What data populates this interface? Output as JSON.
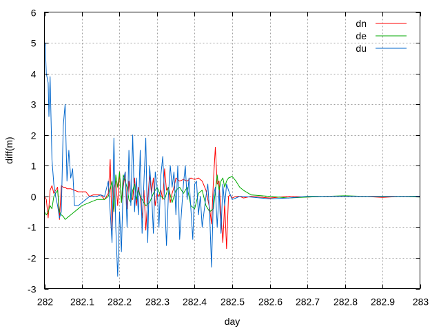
{
  "chart_data": {
    "type": "line",
    "title": "",
    "xlabel": "day",
    "ylabel": "diff(m)",
    "xlim": [
      282,
      283
    ],
    "ylim": [
      -3,
      6
    ],
    "x_ticks": [
      282,
      282.1,
      282.2,
      282.3,
      282.4,
      282.5,
      282.6,
      282.7,
      282.8,
      282.9,
      283
    ],
    "x_tick_labels": [
      "282",
      "282.1",
      "282.2",
      "282.3",
      "282.4",
      "282.5",
      "282.6",
      "282.7",
      "282.8",
      "282.9",
      "283"
    ],
    "y_ticks": [
      -3,
      -2,
      -1,
      0,
      1,
      2,
      3,
      4,
      5,
      6
    ],
    "y_tick_labels": [
      "-3",
      "-2",
      "-1",
      "0",
      "1",
      "2",
      "3",
      "4",
      "5",
      "6"
    ],
    "grid": true,
    "legend_position": "top-right",
    "series": [
      {
        "name": "dn",
        "color": "#ff0000",
        "x": [
          282.0,
          282.005,
          282.01,
          282.015,
          282.02,
          282.025,
          282.03,
          282.035,
          282.04,
          282.045,
          282.05,
          282.055,
          282.06,
          282.065,
          282.07,
          282.08,
          282.09,
          282.1,
          282.11,
          282.12,
          282.13,
          282.14,
          282.15,
          282.16,
          282.17,
          282.175,
          282.18,
          282.185,
          282.19,
          282.195,
          282.2,
          282.205,
          282.21,
          282.215,
          282.22,
          282.225,
          282.23,
          282.235,
          282.24,
          282.245,
          282.25,
          282.255,
          282.26,
          282.265,
          282.27,
          282.275,
          282.28,
          282.285,
          282.29,
          282.295,
          282.3,
          282.305,
          282.31,
          282.315,
          282.32,
          282.325,
          282.33,
          282.335,
          282.34,
          282.345,
          282.35,
          282.36,
          282.37,
          282.38,
          282.39,
          282.4,
          282.41,
          282.42,
          282.43,
          282.44,
          282.445,
          282.45,
          282.455,
          282.46,
          282.465,
          282.47,
          282.475,
          282.48,
          282.485,
          282.49,
          282.495,
          282.5,
          282.51,
          282.52,
          282.53,
          282.55,
          282.6,
          282.65,
          282.7,
          282.75,
          282.8,
          282.85,
          282.9,
          282.95,
          283.0
        ],
        "values": [
          0.0,
          -0.1,
          -0.7,
          0.2,
          0.35,
          0.1,
          0.2,
          0.3,
          -0.75,
          0.35,
          0.3,
          0.3,
          0.25,
          0.25,
          0.25,
          0.2,
          0.15,
          0.15,
          0.15,
          0.0,
          0.05,
          0.05,
          0.05,
          -0.1,
          0.1,
          1.2,
          -1.1,
          0.3,
          0.5,
          -0.3,
          0.8,
          -0.2,
          0.3,
          0.8,
          -0.4,
          0.5,
          -0.05,
          -0.1,
          0.6,
          -0.3,
          0.3,
          0.0,
          -0.7,
          0.2,
          -1.1,
          -0.1,
          0.7,
          0.1,
          0.6,
          -0.3,
          0.1,
          0.0,
          0.2,
          -0.1,
          0.9,
          0.2,
          0.3,
          -0.2,
          0.1,
          0.3,
          0.6,
          0.5,
          0.55,
          0.5,
          0.6,
          0.55,
          0.6,
          0.5,
          0.2,
          -0.4,
          -0.9,
          0.5,
          1.6,
          0.4,
          0.5,
          -0.6,
          -1.5,
          -0.2,
          -1.7,
          0.0,
          0.05,
          -0.05,
          0.0,
          0.0,
          -0.05,
          0.0,
          -0.05,
          0.0,
          -0.02,
          0.0,
          0.0,
          0.0,
          -0.03,
          0.0,
          0.0
        ]
      },
      {
        "name": "de",
        "color": "#00aa00",
        "x": [
          282.0,
          282.005,
          282.01,
          282.015,
          282.02,
          282.025,
          282.03,
          282.035,
          282.04,
          282.045,
          282.05,
          282.055,
          282.06,
          282.065,
          282.07,
          282.08,
          282.09,
          282.1,
          282.12,
          282.14,
          282.16,
          282.17,
          282.18,
          282.185,
          282.19,
          282.195,
          282.2,
          282.205,
          282.21,
          282.215,
          282.22,
          282.225,
          282.23,
          282.235,
          282.24,
          282.245,
          282.25,
          282.255,
          282.26,
          282.27,
          282.28,
          282.29,
          282.3,
          282.31,
          282.32,
          282.33,
          282.34,
          282.35,
          282.36,
          282.37,
          282.38,
          282.39,
          282.4,
          282.41,
          282.42,
          282.43,
          282.44,
          282.45,
          282.46,
          282.465,
          282.47,
          282.475,
          282.48,
          282.485,
          282.49,
          282.5,
          282.51,
          282.52,
          282.53,
          282.55,
          282.6,
          282.65,
          282.7,
          282.75,
          282.8,
          282.85,
          282.9,
          282.95,
          283.0
        ],
        "values": [
          -0.5,
          -0.6,
          -0.5,
          -0.3,
          -0.4,
          0.0,
          0.1,
          0.2,
          -0.5,
          -0.6,
          -0.65,
          -0.75,
          -0.7,
          -0.65,
          -0.6,
          -0.5,
          -0.4,
          -0.3,
          -0.2,
          -0.1,
          -0.1,
          0.0,
          0.5,
          -0.5,
          0.7,
          0.3,
          0.8,
          -0.2,
          0.7,
          0.5,
          0.3,
          -0.1,
          -0.2,
          0.2,
          0.4,
          -0.1,
          0.2,
          0.0,
          -0.1,
          -0.3,
          -0.2,
          0.1,
          0.3,
          0.0,
          -0.1,
          0.3,
          -0.2,
          0.2,
          0.3,
          0.1,
          0.3,
          -0.3,
          -0.4,
          0.1,
          0.2,
          -0.3,
          -0.5,
          -0.4,
          0.7,
          0.2,
          0.5,
          0.6,
          0.3,
          0.5,
          0.6,
          0.65,
          0.5,
          0.3,
          0.2,
          0.05,
          0.0,
          -0.05,
          -0.02,
          0.0,
          0.02,
          0.0,
          -0.01,
          0.0,
          -0.02
        ]
      },
      {
        "name": "du",
        "color": "#0066cc",
        "x": [
          282.0,
          282.002,
          282.005,
          282.01,
          282.012,
          282.015,
          282.02,
          282.025,
          282.03,
          282.035,
          282.04,
          282.045,
          282.05,
          282.055,
          282.06,
          282.065,
          282.07,
          282.075,
          282.08,
          282.09,
          282.1,
          282.11,
          282.12,
          282.13,
          282.14,
          282.15,
          282.16,
          282.17,
          282.18,
          282.185,
          282.19,
          282.195,
          282.2,
          282.205,
          282.21,
          282.215,
          282.22,
          282.225,
          282.23,
          282.235,
          282.24,
          282.245,
          282.25,
          282.255,
          282.26,
          282.265,
          282.27,
          282.275,
          282.28,
          282.285,
          282.29,
          282.295,
          282.3,
          282.305,
          282.31,
          282.315,
          282.32,
          282.325,
          282.33,
          282.335,
          282.34,
          282.345,
          282.35,
          282.355,
          282.36,
          282.365,
          282.37,
          282.375,
          282.38,
          282.385,
          282.39,
          282.395,
          282.4,
          282.405,
          282.41,
          282.415,
          282.42,
          282.425,
          282.43,
          282.435,
          282.44,
          282.445,
          282.45,
          282.455,
          282.46,
          282.465,
          282.47,
          282.475,
          282.48,
          282.485,
          282.49,
          282.5,
          282.51,
          282.52,
          282.55,
          282.6,
          282.65,
          282.7,
          282.75,
          282.8,
          282.85,
          282.9,
          282.95,
          283.0
        ],
        "values": [
          4.9,
          5.0,
          4.0,
          3.7,
          2.6,
          3.9,
          1.2,
          0.4,
          0.0,
          -0.3,
          -0.7,
          -0.5,
          2.3,
          3.0,
          0.5,
          1.5,
          0.6,
          0.9,
          -0.3,
          -0.3,
          -0.2,
          -0.1,
          0.0,
          0.0,
          0.0,
          0.05,
          0.0,
          0.5,
          -1.5,
          1.9,
          -1.0,
          -2.6,
          -0.5,
          -1.8,
          0.5,
          0.8,
          -1.0,
          1.5,
          -0.3,
          2.0,
          -0.5,
          0.6,
          -0.6,
          1.5,
          -1.2,
          0.5,
          1.9,
          -1.5,
          1.0,
          0.2,
          -1.2,
          0.8,
          0.3,
          -1.0,
          0.7,
          1.3,
          0.0,
          -1.6,
          0.0,
          1.0,
          0.3,
          0.8,
          -0.6,
          1.0,
          -1.4,
          -0.5,
          0.4,
          1.0,
          -0.1,
          0.6,
          -0.4,
          -1.4,
          0.4,
          0.5,
          -0.6,
          0.0,
          -1.0,
          -0.5,
          0.0,
          0.4,
          -0.6,
          -2.3,
          0.0,
          0.3,
          -1.0,
          0.2,
          -1.2,
          0.4,
          -0.3,
          0.4,
          0.2,
          -0.1,
          -0.05,
          0.0,
          -0.02,
          -0.08,
          -0.05,
          0.0,
          0.0,
          0.0,
          0.0,
          0.0,
          0.0,
          0.0
        ]
      }
    ]
  }
}
